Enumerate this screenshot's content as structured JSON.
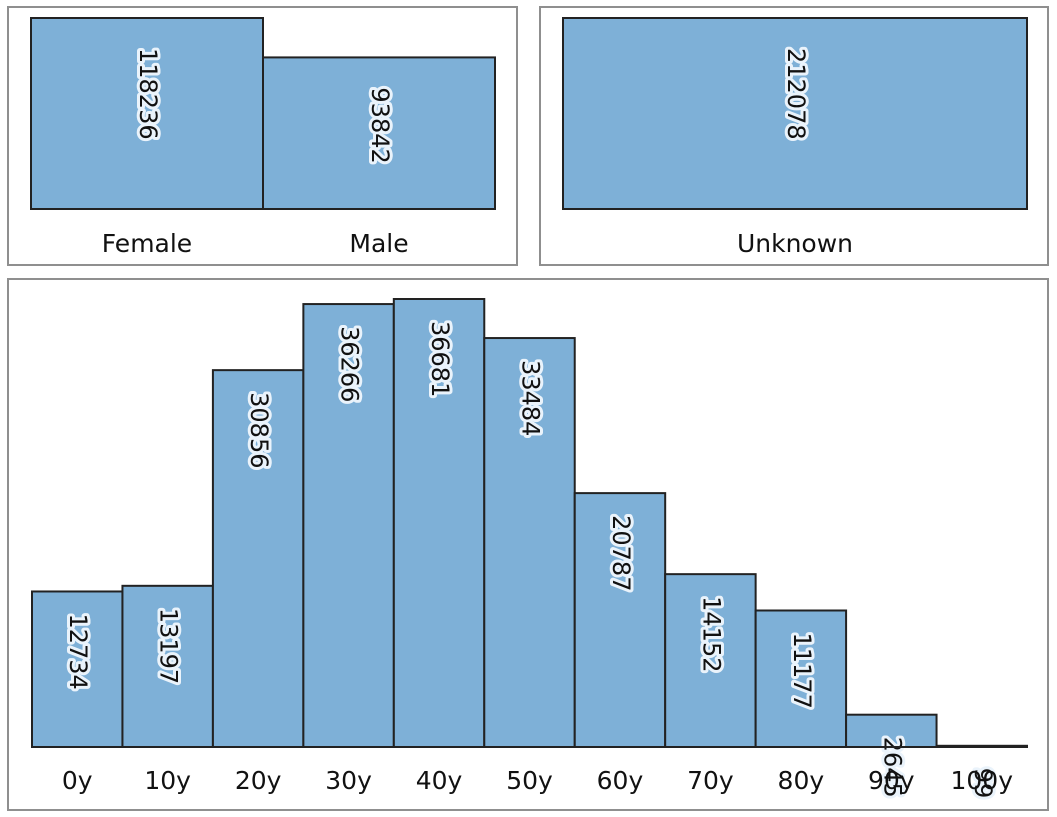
{
  "chart_data": [
    {
      "type": "bar",
      "categories": [
        "Female",
        "Male"
      ],
      "values": [
        118236,
        93842
      ],
      "ylim": [
        0,
        118236
      ],
      "grid": false,
      "color": "#7eb0d7"
    },
    {
      "type": "bar",
      "categories": [
        "Unknown"
      ],
      "values": [
        212078
      ],
      "ylim": [
        0,
        212078
      ],
      "grid": false,
      "color": "#7eb0d7"
    },
    {
      "type": "bar",
      "categories": [
        "0y",
        "10y",
        "20y",
        "30y",
        "40y",
        "50y",
        "60y",
        "70y",
        "80y",
        "90y",
        "100y"
      ],
      "values": [
        12734,
        13197,
        30856,
        36266,
        36681,
        33484,
        20787,
        14152,
        11177,
        2645,
        99
      ],
      "ylim": [
        0,
        36681
      ],
      "grid": false,
      "color": "#7eb0d7"
    }
  ]
}
